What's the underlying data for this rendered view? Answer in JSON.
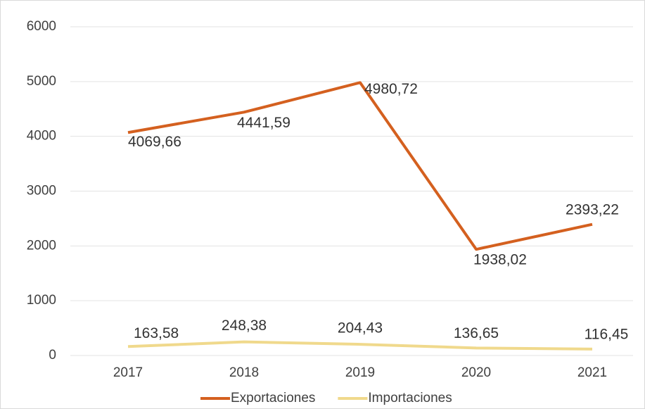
{
  "chart_data": {
    "type": "line",
    "categories": [
      "2017",
      "2018",
      "2019",
      "2020",
      "2021"
    ],
    "series": [
      {
        "name": "Exportaciones",
        "color": "#d4601f",
        "values": [
          4069.66,
          4441.59,
          4980.72,
          1938.02,
          2393.22
        ],
        "value_labels": [
          "4069,66",
          "4441,59",
          "4980,72",
          "1938,02",
          "2393,22"
        ]
      },
      {
        "name": "Importaciones",
        "color": "#f0d98c",
        "values": [
          163.58,
          248.38,
          204.43,
          136.65,
          116.45
        ],
        "value_labels": [
          "163,58",
          "248,38",
          "204,43",
          "136,65",
          "116,45"
        ]
      }
    ],
    "ylim": [
      0,
      6000
    ],
    "yticks": [
      0,
      1000,
      2000,
      3000,
      4000,
      5000,
      6000
    ],
    "grid": true,
    "legend": "bottom"
  }
}
